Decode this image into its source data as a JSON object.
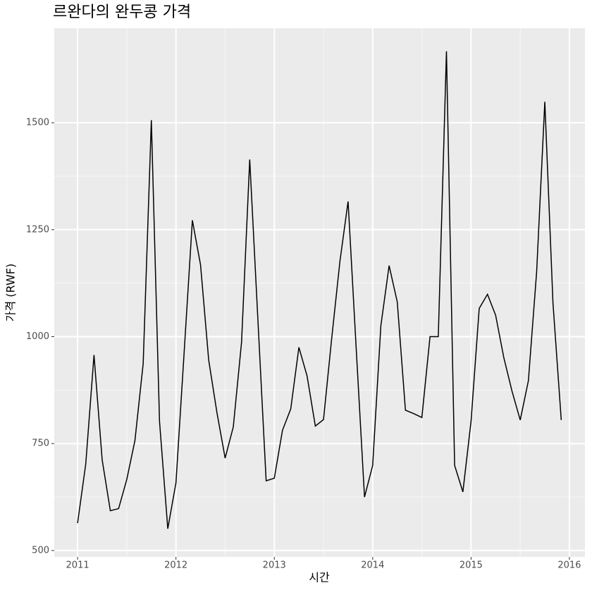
{
  "chart_data": {
    "type": "line",
    "title": "르완다의 완두콩 가격",
    "x_label": "시간",
    "y_label": "가격 (RWF)",
    "x": [
      2011.0,
      2011.083,
      2011.167,
      2011.25,
      2011.333,
      2011.417,
      2011.5,
      2011.583,
      2011.667,
      2011.75,
      2011.833,
      2011.917,
      2012.0,
      2012.083,
      2012.167,
      2012.25,
      2012.333,
      2012.417,
      2012.5,
      2012.583,
      2012.667,
      2012.75,
      2012.833,
      2012.917,
      2013.0,
      2013.083,
      2013.167,
      2013.25,
      2013.333,
      2013.417,
      2013.5,
      2013.583,
      2013.667,
      2013.75,
      2013.833,
      2013.917,
      2014.0,
      2014.083,
      2014.167,
      2014.25,
      2014.333,
      2014.417,
      2014.5,
      2014.583,
      2014.667,
      2014.75,
      2014.833,
      2014.917,
      2015.0,
      2015.083,
      2015.167,
      2015.25,
      2015.333,
      2015.417,
      2015.5,
      2015.583,
      2015.667,
      2015.75,
      2015.833,
      2015.917
    ],
    "series": [
      {
        "name": "가격",
        "color": "#000000",
        "values": [
          564,
          702,
          957,
          712,
          593,
          598,
          666,
          757,
          937,
          1506,
          802,
          551,
          658,
          962,
          1272,
          1168,
          945,
          822,
          716,
          789,
          987,
          1414,
          1040,
          663,
          669,
          781,
          831,
          975,
          908,
          791,
          806,
          995,
          1176,
          1316,
          970,
          625,
          699,
          1025,
          1166,
          1081,
          828,
          820,
          811,
          1000,
          1000,
          1667,
          699,
          637,
          802,
          1066,
          1099,
          1050,
          951,
          872,
          805,
          897,
          1152,
          1549,
          1078,
          805
        ]
      }
    ],
    "xlim": [
      2010.763,
      2016.158
    ],
    "ylim": [
      485,
      1721
    ],
    "xticks": [
      2011,
      2012,
      2013,
      2014,
      2015,
      2016
    ],
    "yticks": [
      500,
      750,
      1000,
      1250,
      1500
    ],
    "grid": true
  }
}
